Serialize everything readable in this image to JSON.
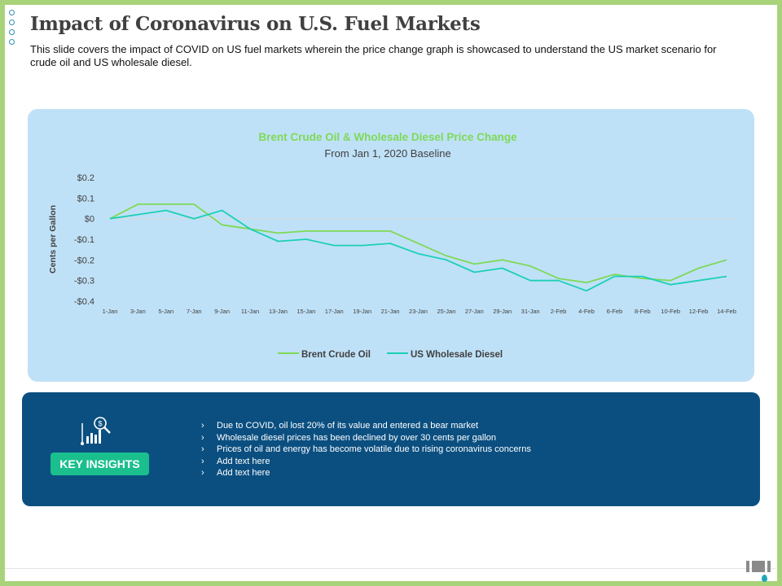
{
  "page": {
    "title": "Impact of Coronavirus on U.S. Fuel Markets",
    "subtitle": "This slide covers the impact of COVID  on US fuel markets wherein the price change graph  is showcased to understand the US market scenario for crude oil and US wholesale diesel."
  },
  "chart_data": {
    "type": "line",
    "title": "Brent Crude Oil & Wholesale Diesel Price Change",
    "subtitle": "From Jan 1, 2020 Baseline",
    "xlabel": "",
    "ylabel": "Cents per Gallon",
    "ylim": [
      -0.4,
      0.2
    ],
    "y_ticks": [
      0.2,
      0.1,
      0,
      -0.1,
      -0.2,
      -0.3,
      -0.4
    ],
    "y_tick_labels": [
      "$0.2",
      "$0.1",
      "$0",
      "-$0.1",
      "-$0.2",
      "-$0.3",
      "-$0.4"
    ],
    "categories": [
      "1-Jan",
      "3-Jan",
      "5-Jan",
      "7-Jan",
      "9-Jan",
      "11-Jan",
      "13-Jan",
      "15-Jan",
      "17-Jan",
      "19-Jan",
      "21-Jan",
      "23-Jan",
      "25-Jan",
      "27-Jan",
      "29-Jan",
      "31-Jan",
      "2-Feb",
      "4-Feb",
      "6-Feb",
      "8-Feb",
      "10-Feb",
      "12-Feb",
      "14-Feb"
    ],
    "series": [
      {
        "name": "Brent Crude Oil",
        "color": "#7ed957",
        "values": [
          0,
          0.07,
          0.07,
          0.07,
          -0.03,
          -0.05,
          -0.07,
          -0.06,
          -0.06,
          -0.06,
          -0.06,
          -0.12,
          -0.18,
          -0.22,
          -0.2,
          -0.23,
          -0.29,
          -0.31,
          -0.27,
          -0.29,
          -0.3,
          -0.24,
          -0.2
        ]
      },
      {
        "name": "US Wholesale Diesel",
        "color": "#1ccfb9",
        "values": [
          0,
          0.02,
          0.04,
          0,
          0.04,
          -0.05,
          -0.11,
          -0.1,
          -0.13,
          -0.13,
          -0.12,
          -0.17,
          -0.2,
          -0.26,
          -0.24,
          -0.3,
          -0.3,
          -0.35,
          -0.28,
          -0.28,
          -0.32,
          -0.3,
          -0.28
        ]
      }
    ],
    "grid": false,
    "legend": "bottom"
  },
  "insights": {
    "button_label": "KEY INSIGHTS",
    "bullet_marker": "›",
    "items": [
      "Due to COVID, oil lost 20% of its value and entered a bear market",
      "Wholesale diesel prices has been declined by over 30 cents per gallon",
      "Prices of oil and energy has become volatile due to rising coronavirus concerns",
      "Add text here",
      "Add text here"
    ]
  },
  "colors": {
    "chart_bg": "#bfe1f7",
    "insight_bg": "#0b4f80",
    "button_bg": "#1bbf8e",
    "frame": "#a9d37a"
  }
}
